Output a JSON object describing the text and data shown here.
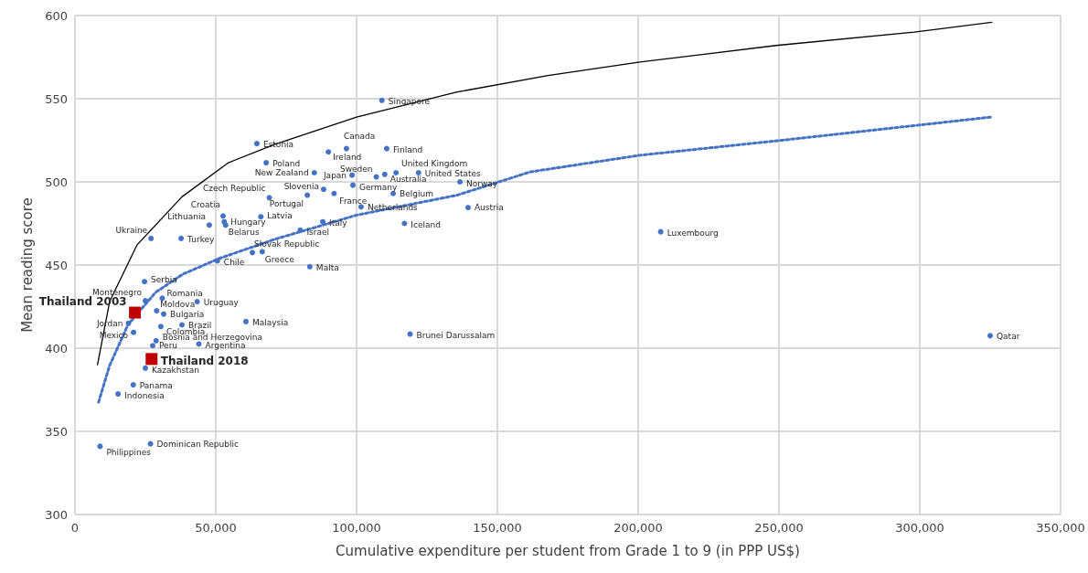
{
  "chart_data": {
    "type": "scatter",
    "xlabel": "Cumulative expenditure per student from Grade 1 to 9 (in PPP US$)",
    "ylabel": "Mean reading score",
    "xlim": [
      0,
      350000
    ],
    "ylim": [
      300,
      600
    ],
    "xticks": [
      {
        "value": 0,
        "label": "0"
      },
      {
        "value": 50000,
        "label": "50,000"
      },
      {
        "value": 100000,
        "label": "100,000"
      },
      {
        "value": 150000,
        "label": "150,000"
      },
      {
        "value": 200000,
        "label": "200,000"
      },
      {
        "value": 250000,
        "label": "250,000"
      },
      {
        "value": 300000,
        "label": "300,000"
      },
      {
        "value": 350000,
        "label": "350,000"
      }
    ],
    "yticks": [
      300,
      350,
      400,
      450,
      500,
      550,
      600
    ],
    "grid": true,
    "series": [
      {
        "type": "line",
        "color": "#000000",
        "line_style": "solid",
        "marker": "none",
        "x": [
          8000,
          12300,
          22000,
          38000,
          54500,
          70800,
          100000,
          135700,
          168000,
          200600,
          249000,
          298000,
          325600
        ],
        "values": [
          390,
          428,
          462,
          491,
          511.5,
          522.5,
          539,
          554,
          564,
          572,
          582,
          590,
          596
        ]
      },
      {
        "type": "line",
        "color": "#4472c4",
        "line_style": "dotted",
        "marker": "none",
        "x": [
          8400,
          12300,
          18800,
          28600,
          38300,
          51300,
          70800,
          100000,
          135700,
          161700,
          200600,
          251000,
          325600
        ],
        "values": [
          367.6,
          389.6,
          414,
          433.5,
          444.5,
          454,
          465.4,
          480,
          492,
          506,
          516,
          525,
          539
        ]
      },
      {
        "color": "#4472c4",
        "marker": "circle",
        "x": [
          109000,
          64600,
          67900,
          85000,
          90000,
          96400,
          110700,
          98400,
          107000,
          110000,
          114000,
          122000,
          136700,
          98700,
          88300,
          92000,
          82500,
          69000,
          101600,
          113000,
          139600,
          117000,
          88000,
          80000,
          66000,
          52600,
          53000,
          53500,
          47700,
          37700,
          27000,
          50600,
          63000,
          66500,
          83400,
          24700,
          25000,
          31000,
          43400,
          29000,
          31500,
          19000,
          38000,
          60700,
          30500,
          20800,
          28800,
          27600,
          44000,
          25000,
          20700,
          15300,
          8900,
          26800,
          119000,
          208000,
          325000
        ],
        "values": [
          549,
          523,
          511.5,
          505.5,
          518,
          520,
          520,
          504,
          503,
          504.5,
          505.5,
          505.5,
          500,
          498,
          495.5,
          493,
          492,
          490.5,
          485,
          493,
          484.5,
          475,
          476,
          471,
          479,
          479.5,
          476,
          474,
          474,
          466,
          466,
          452.5,
          457.5,
          458,
          449,
          440,
          428.5,
          430,
          428,
          422.5,
          420.5,
          415,
          414,
          416,
          413,
          409.5,
          404.5,
          401.5,
          402.5,
          388,
          378,
          372.5,
          341,
          342.5,
          408.5,
          470,
          407.5
        ],
        "value_labels": [
          "Singapore",
          "Estonia",
          "Poland",
          "New Zealand",
          "Ireland",
          "Canada",
          "Finland",
          "Japan",
          "Sweden",
          "Australia",
          "United Kingdom",
          "United States",
          "Norway",
          "Germany",
          "Slovenia",
          "France",
          "Portugal",
          "Czech Republic",
          "Netherlands",
          "Belgium",
          "Austria",
          "Iceland",
          "Italy",
          "Israel",
          "Latvia",
          "Croatia",
          "Hungary",
          "Belarus",
          "Lithuania",
          "Turkey",
          "Ukraine",
          "Chile",
          "Slovak Republic",
          "Greece",
          "Malta",
          "Serbia",
          "Montenegro",
          "Romania",
          "Uruguay",
          "Moldova",
          "Bulgaria",
          "Jordan",
          "Brazil",
          "Malaysia",
          "Colombia",
          "Mexico",
          "Bosnia and Herzegovina",
          "Peru",
          "Argentina",
          "Kazakhstan",
          "Panama",
          "Indonesia",
          "Philippines",
          "Dominican Republic",
          "Brunei Darussalam",
          "Luxembourg",
          "Qatar"
        ]
      },
      {
        "color": "#c00000",
        "marker": "square",
        "x": [
          21300,
          27200
        ],
        "values": [
          421.4,
          393.5
        ],
        "value_labels": [
          "Thailand 2003",
          "Thailand 2018"
        ]
      }
    ]
  }
}
